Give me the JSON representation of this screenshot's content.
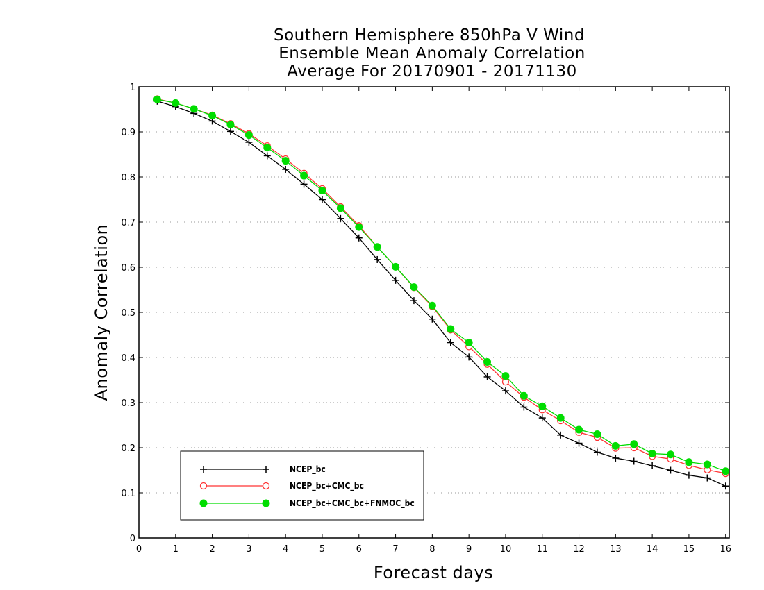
{
  "chart_data": {
    "type": "line",
    "title_lines": [
      "Southern Hemisphere 850hPa V Wind",
      "Ensemble Mean Anomaly Correlation",
      "Average For 20170901 - 20171130"
    ],
    "xlabel": "Forecast days",
    "ylabel": "Anomaly Correlation",
    "xlim": [
      0,
      16.1
    ],
    "ylim": [
      0,
      1
    ],
    "x_ticks": [
      0,
      1,
      2,
      3,
      4,
      5,
      6,
      7,
      8,
      9,
      10,
      11,
      12,
      13,
      14,
      15,
      16
    ],
    "y_ticks": [
      0,
      0.1,
      0.2,
      0.3,
      0.4,
      0.5,
      0.6,
      0.7,
      0.8,
      0.9,
      1
    ],
    "y_tick_labels": [
      "0",
      "0.1",
      "0.2",
      "0.3",
      "0.4",
      "0.5",
      "0.6",
      "0.7",
      "0.8",
      "0.9",
      "1"
    ],
    "grid": "horizontal dotted",
    "legend_position": "lower-left",
    "x": [
      0.5,
      1.0,
      1.5,
      2.0,
      2.5,
      3.0,
      3.5,
      4.0,
      4.5,
      5.0,
      5.5,
      6.0,
      6.5,
      7.0,
      7.5,
      8.0,
      8.5,
      9.0,
      9.5,
      10.0,
      10.5,
      11.0,
      11.5,
      12.0,
      12.5,
      13.0,
      13.5,
      14.0,
      14.5,
      15.0,
      15.5,
      16.0
    ],
    "series": [
      {
        "name": "NCEP_bc",
        "color": "#000000",
        "marker": "plus",
        "values": [
          0.968,
          0.956,
          0.941,
          0.924,
          0.901,
          0.877,
          0.847,
          0.817,
          0.784,
          0.75,
          0.708,
          0.665,
          0.617,
          0.571,
          0.526,
          0.485,
          0.433,
          0.401,
          0.357,
          0.326,
          0.29,
          0.266,
          0.228,
          0.21,
          0.19,
          0.177,
          0.17,
          0.16,
          0.15,
          0.139,
          0.133,
          0.115
        ]
      },
      {
        "name": "NCEP_bc+CMC_bc",
        "color": "#ff3333",
        "marker": "open-circle",
        "values": [
          0.973,
          0.964,
          0.951,
          0.937,
          0.918,
          0.896,
          0.869,
          0.84,
          0.808,
          0.774,
          0.734,
          0.692,
          0.645,
          0.601,
          0.555,
          0.513,
          0.461,
          0.424,
          0.385,
          0.346,
          0.312,
          0.284,
          0.26,
          0.234,
          0.223,
          0.199,
          0.2,
          0.181,
          0.175,
          0.161,
          0.151,
          0.143
        ]
      },
      {
        "name": "NCEP_bc+CMC_bc+FNMOC_bc",
        "color": "#00dd00",
        "marker": "filled-circle",
        "values": [
          0.972,
          0.964,
          0.951,
          0.936,
          0.916,
          0.893,
          0.865,
          0.836,
          0.803,
          0.77,
          0.731,
          0.689,
          0.645,
          0.601,
          0.556,
          0.515,
          0.463,
          0.433,
          0.39,
          0.359,
          0.315,
          0.292,
          0.266,
          0.24,
          0.23,
          0.204,
          0.208,
          0.187,
          0.185,
          0.168,
          0.163,
          0.148
        ]
      }
    ]
  }
}
